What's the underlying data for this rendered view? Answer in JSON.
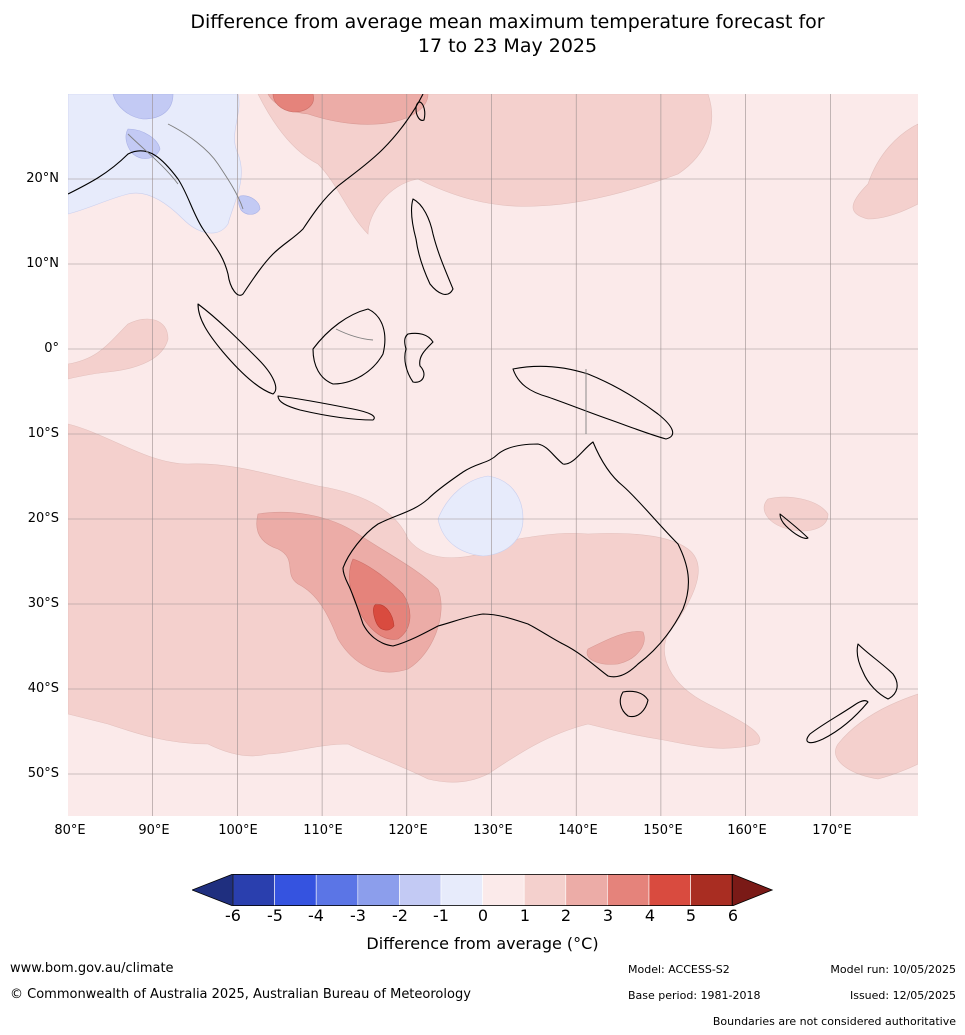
{
  "header": {
    "title_line1": "Difference from average mean maximum temperature forecast for",
    "title_line2": "17 to 23 May 2025"
  },
  "map": {
    "region": "Southeast Asia, Australia and Southwest Pacific",
    "lat_labels": [
      "20°N",
      "10°N",
      "0°",
      "10°S",
      "20°S",
      "30°S",
      "40°S",
      "50°S"
    ],
    "lon_labels": [
      "80°E",
      "90°E",
      "100°E",
      "110°E",
      "120°E",
      "130°E",
      "140°E",
      "150°E",
      "160°E",
      "170°E"
    ],
    "features": {
      "hot_spot": "southwest Western Australia, 4 to 5 °C above average",
      "cool_areas": [
        "inland northern Australia",
        "mainland Southeast Asia and southern China"
      ]
    }
  },
  "colorbar": {
    "title": "Difference from average (°C)",
    "ticks": [
      "-6",
      "-5",
      "-4",
      "-3",
      "-2",
      "-1",
      "0",
      "1",
      "2",
      "3",
      "4",
      "5",
      "6"
    ],
    "colors": [
      "#1f2f7f",
      "#2a3fae",
      "#3553e0",
      "#5b75e6",
      "#8c9eec",
      "#c3caf4",
      "#e7ebfb",
      "#fbeaea",
      "#f4d0cd",
      "#ecaca7",
      "#e5837b",
      "#d94b3f",
      "#a92d22",
      "#7a1a17"
    ]
  },
  "footer": {
    "website": "www.bom.gov.au/climate",
    "copyright": "© Commonwealth of Australia 2025, Australian Bureau of Meteorology",
    "model": "Model: ACCESS-S2",
    "base_period": "Base period: 1981-2018",
    "model_run": "Model run: 10/05/2025",
    "issued": "Issued: 12/05/2025",
    "disclaimer": "Boundaries are not considered authoritative"
  }
}
